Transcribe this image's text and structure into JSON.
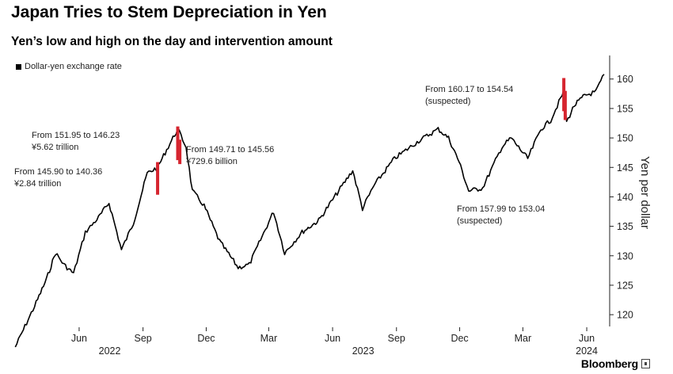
{
  "title": "Japan Tries to Stem Depreciation in Yen",
  "subtitle": "Yen’s low and high on the day and intervention amount",
  "brand": "Bloomberg",
  "colors": {
    "line": "#000000",
    "intervention": "#d6252f",
    "axis": "#222222"
  },
  "chart_data": {
    "type": "line",
    "series": [
      {
        "name": "Dollar-yen exchange rate",
        "x": [
          "2022-03-01",
          "2022-03-15",
          "2022-03-31",
          "2022-04-15",
          "2022-04-28",
          "2022-05-10",
          "2022-05-24",
          "2022-06-10",
          "2022-06-29",
          "2022-07-14",
          "2022-08-01",
          "2022-08-18",
          "2022-09-07",
          "2022-09-22",
          "2022-10-05",
          "2022-10-21",
          "2022-11-02",
          "2022-11-11",
          "2022-11-28",
          "2022-12-20",
          "2023-01-16",
          "2023-02-01",
          "2023-03-08",
          "2023-03-24",
          "2023-04-18",
          "2023-05-12",
          "2023-06-01",
          "2023-06-30",
          "2023-07-14",
          "2023-07-31",
          "2023-08-29",
          "2023-10-03",
          "2023-10-31",
          "2023-11-15",
          "2023-11-30",
          "2023-12-14",
          "2024-01-03",
          "2024-01-31",
          "2024-02-13",
          "2024-03-08",
          "2024-03-27",
          "2024-04-10",
          "2024-04-29",
          "2024-05-03",
          "2024-05-14",
          "2024-05-29",
          "2024-06-14",
          "2024-06-26"
        ],
        "values": [
          114.5,
          118,
          122,
          126,
          130.5,
          128.5,
          127,
          134,
          136.5,
          139,
          131,
          135.5,
          144,
          145,
          148,
          151.5,
          148.5,
          141,
          138.5,
          132.5,
          128,
          128.5,
          137.5,
          130.5,
          134,
          136,
          139.5,
          144.5,
          138,
          142,
          146.5,
          149.5,
          151.5,
          150,
          146,
          141,
          141.5,
          148.5,
          150,
          146.5,
          151.5,
          153,
          157.9,
          152.7,
          155.5,
          157.2,
          157.8,
          160.8
        ]
      }
    ],
    "interventions": [
      {
        "date": "2022-09-22",
        "from": 145.9,
        "to": 140.36,
        "amount": "¥2.84 trillion"
      },
      {
        "date": "2022-10-21",
        "from": 151.95,
        "to": 146.23,
        "amount": "¥5.62 trillion"
      },
      {
        "date": "2022-10-24",
        "from": 149.71,
        "to": 145.56,
        "amount": "¥729.6 billion"
      },
      {
        "date": "2024-04-29",
        "from": 160.17,
        "to": 154.54,
        "amount": "(suspected)"
      },
      {
        "date": "2024-05-01",
        "from": 157.99,
        "to": 153.04,
        "amount": "(suspected)"
      }
    ],
    "annotations": {
      "a1_line1": "From 145.90 to 140.36",
      "a1_line2": "¥2.84 trillion",
      "a2_line1": "From 151.95 to 146.23",
      "a2_line2": "¥5.62 trillion",
      "a3_line1": "From 149.71 to 145.56",
      "a3_line2": "¥729.6 billion",
      "a4_line1": "From 160.17 to 154.54",
      "a4_line2": "(suspected)",
      "a5_line1": "From 157.99 to 153.04",
      "a5_line2": "(suspected)"
    },
    "ylabel": "Yen per dollar",
    "ylim": [
      118,
      164
    ],
    "yticks": [
      120,
      125,
      130,
      135,
      140,
      145,
      150,
      155,
      160
    ],
    "xlim": [
      "2022-02-23",
      "2024-07-04"
    ],
    "xticks": [
      {
        "date": "2022-06-01",
        "label": "Jun"
      },
      {
        "date": "2022-09-01",
        "label": "Sep"
      },
      {
        "date": "2022-12-01",
        "label": "Dec"
      },
      {
        "date": "2023-03-01",
        "label": "Mar"
      },
      {
        "date": "2023-06-01",
        "label": "Jun"
      },
      {
        "date": "2023-09-01",
        "label": "Sep"
      },
      {
        "date": "2023-12-01",
        "label": "Dec"
      },
      {
        "date": "2024-03-01",
        "label": "Mar"
      },
      {
        "date": "2024-06-01",
        "label": "Jun"
      }
    ],
    "years": [
      {
        "date": "2022-07-15",
        "label": "2022"
      },
      {
        "date": "2023-07-15",
        "label": "2023"
      },
      {
        "date": "2024-06-01",
        "label": "2024"
      }
    ],
    "grid": false,
    "legend": "top-left"
  }
}
